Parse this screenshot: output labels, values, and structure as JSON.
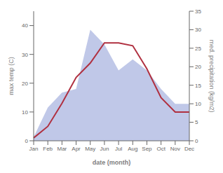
{
  "chart_data": {
    "type": "line",
    "categories": [
      "Jan",
      "Feb",
      "Mar",
      "Apr",
      "May",
      "Jun",
      "Jul",
      "Aug",
      "Sep",
      "Oct",
      "Nov",
      "Dec"
    ],
    "xlabel": "date (month)",
    "ylabel": "max temp (C)",
    "y2label": "med. precipitation (kg/m2)",
    "series": [
      {
        "type": "area",
        "axis": "y2",
        "color": "#c0c8e8",
        "values": [
          1.0,
          9.0,
          13.0,
          14.0,
          30.0,
          26.0,
          19.0,
          22.0,
          19.0,
          14.0,
          10.0,
          10.0
        ]
      },
      {
        "type": "line",
        "color": "#b03040",
        "values": [
          1.0,
          5.0,
          13.0,
          22.0,
          27.0,
          34.0,
          34.0,
          33.0,
          25.0,
          15.0,
          10.0,
          10.0
        ]
      }
    ],
    "ylim": [
      0,
      45
    ],
    "yticks": [
      0,
      10,
      20,
      30,
      40
    ],
    "y2lim": [
      0,
      35
    ],
    "y2ticks": [
      0,
      5,
      10,
      15,
      20,
      25,
      30,
      35
    ],
    "grid": false
  }
}
